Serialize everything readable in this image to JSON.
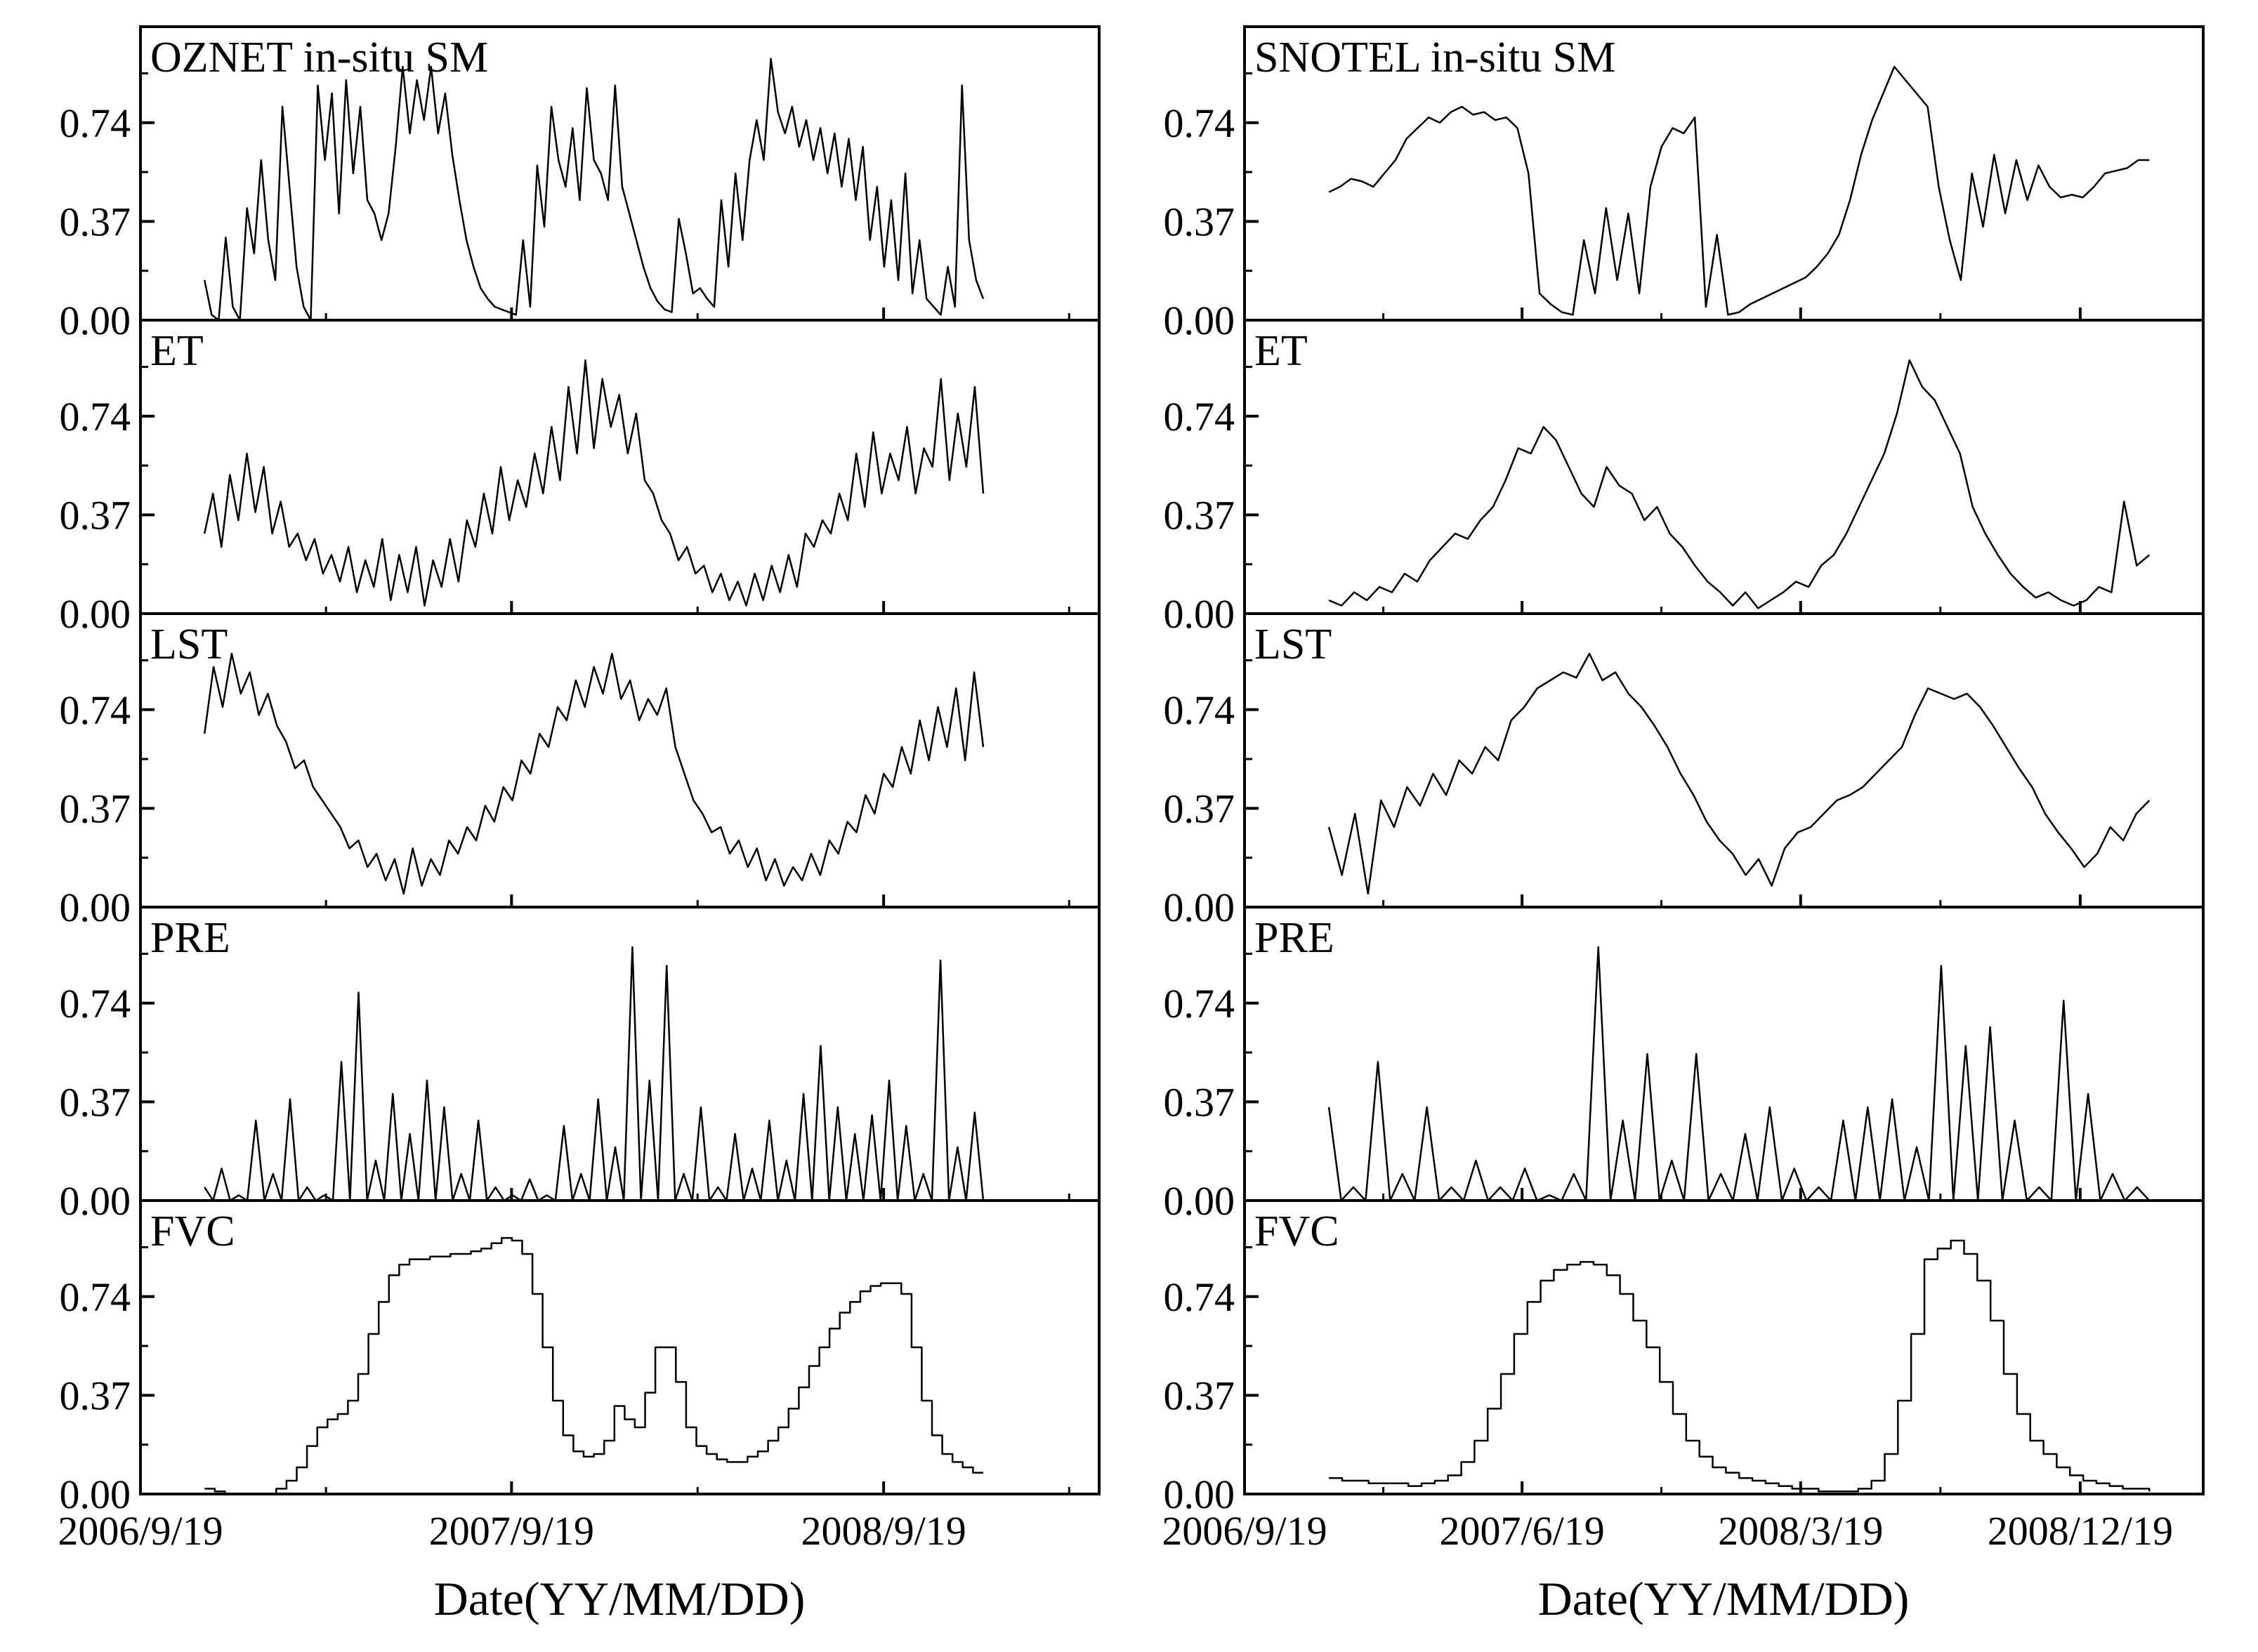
{
  "figure": {
    "x_axis_title": "Date(YY/MM/DD)",
    "y_tick_labels": [
      "0.00",
      "0.37",
      "0.74"
    ]
  },
  "chart_data": [
    {
      "type": "line",
      "column": "left",
      "x_axis_title": "Date(YY/MM/DD)",
      "x_tick_labels": [
        "2006/9/19",
        "2007/9/19",
        "2008/9/19"
      ],
      "x_tick_dates": [
        "2006-09-19",
        "2007-09-19",
        "2008-09-19"
      ],
      "x_range": [
        "2006-09-19",
        "2009-04-19"
      ],
      "ylim": [
        0,
        1.1
      ],
      "y_ticks": [
        0.0,
        0.37,
        0.74
      ],
      "panels": [
        {
          "title": "OZNET in-situ SM",
          "step": false,
          "x_start": "2006-11-21",
          "x_end": "2008-12-26",
          "values": [
            0.15,
            0.02,
            0.0,
            0.31,
            0.05,
            0.0,
            0.42,
            0.25,
            0.6,
            0.3,
            0.15,
            0.8,
            0.5,
            0.2,
            0.05,
            0.0,
            0.88,
            0.6,
            0.85,
            0.4,
            0.9,
            0.55,
            0.8,
            0.45,
            0.4,
            0.3,
            0.4,
            0.65,
            0.95,
            0.7,
            0.9,
            0.75,
            0.95,
            0.7,
            0.85,
            0.62,
            0.45,
            0.3,
            0.2,
            0.12,
            0.08,
            0.05,
            0.04,
            0.03,
            0.02,
            0.3,
            0.05,
            0.58,
            0.35,
            0.8,
            0.6,
            0.5,
            0.72,
            0.45,
            0.87,
            0.6,
            0.55,
            0.45,
            0.88,
            0.5,
            0.4,
            0.3,
            0.2,
            0.12,
            0.07,
            0.04,
            0.03,
            0.38,
            0.25,
            0.1,
            0.12,
            0.08,
            0.05,
            0.45,
            0.2,
            0.55,
            0.3,
            0.6,
            0.75,
            0.6,
            0.98,
            0.78,
            0.7,
            0.8,
            0.65,
            0.75,
            0.6,
            0.72,
            0.55,
            0.7,
            0.5,
            0.68,
            0.45,
            0.65,
            0.3,
            0.5,
            0.2,
            0.45,
            0.15,
            0.55,
            0.1,
            0.3,
            0.08,
            0.05,
            0.02,
            0.2,
            0.05,
            0.88,
            0.3,
            0.15,
            0.08
          ]
        },
        {
          "title": "ET",
          "step": false,
          "x_start": "2006-11-21",
          "x_end": "2008-12-26",
          "values": [
            0.3,
            0.45,
            0.25,
            0.52,
            0.35,
            0.6,
            0.38,
            0.55,
            0.3,
            0.42,
            0.25,
            0.3,
            0.2,
            0.28,
            0.15,
            0.22,
            0.12,
            0.25,
            0.08,
            0.2,
            0.1,
            0.28,
            0.05,
            0.22,
            0.08,
            0.25,
            0.03,
            0.2,
            0.1,
            0.28,
            0.12,
            0.35,
            0.25,
            0.45,
            0.3,
            0.55,
            0.35,
            0.5,
            0.4,
            0.6,
            0.45,
            0.7,
            0.5,
            0.85,
            0.6,
            0.95,
            0.62,
            0.88,
            0.7,
            0.82,
            0.6,
            0.75,
            0.5,
            0.45,
            0.35,
            0.3,
            0.2,
            0.25,
            0.15,
            0.18,
            0.08,
            0.15,
            0.05,
            0.12,
            0.03,
            0.15,
            0.05,
            0.18,
            0.08,
            0.22,
            0.1,
            0.3,
            0.25,
            0.35,
            0.3,
            0.45,
            0.35,
            0.6,
            0.4,
            0.68,
            0.45,
            0.6,
            0.5,
            0.7,
            0.45,
            0.62,
            0.55,
            0.88,
            0.5,
            0.75,
            0.55,
            0.85,
            0.45
          ]
        },
        {
          "title": "LST",
          "step": false,
          "x_start": "2006-11-21",
          "x_end": "2008-12-26",
          "values": [
            0.65,
            0.9,
            0.75,
            0.95,
            0.8,
            0.88,
            0.72,
            0.8,
            0.68,
            0.62,
            0.52,
            0.55,
            0.45,
            0.4,
            0.35,
            0.3,
            0.22,
            0.25,
            0.15,
            0.2,
            0.1,
            0.18,
            0.05,
            0.22,
            0.08,
            0.18,
            0.12,
            0.25,
            0.2,
            0.3,
            0.25,
            0.38,
            0.32,
            0.45,
            0.4,
            0.55,
            0.5,
            0.65,
            0.6,
            0.75,
            0.7,
            0.85,
            0.75,
            0.9,
            0.8,
            0.95,
            0.78,
            0.85,
            0.7,
            0.78,
            0.72,
            0.82,
            0.6,
            0.5,
            0.4,
            0.35,
            0.28,
            0.3,
            0.2,
            0.25,
            0.15,
            0.22,
            0.1,
            0.18,
            0.08,
            0.15,
            0.1,
            0.2,
            0.12,
            0.25,
            0.2,
            0.32,
            0.28,
            0.42,
            0.35,
            0.5,
            0.45,
            0.6,
            0.5,
            0.7,
            0.55,
            0.75,
            0.6,
            0.82,
            0.55,
            0.88,
            0.6
          ]
        },
        {
          "title": "PRE",
          "step": false,
          "x_start": "2006-11-21",
          "x_end": "2008-12-26",
          "values": [
            0.05,
            0.0,
            0.12,
            0.0,
            0.02,
            0.0,
            0.3,
            0.0,
            0.1,
            0.0,
            0.38,
            0.0,
            0.05,
            0.0,
            0.02,
            0.0,
            0.52,
            0.0,
            0.78,
            0.0,
            0.15,
            0.0,
            0.4,
            0.0,
            0.25,
            0.0,
            0.45,
            0.0,
            0.35,
            0.0,
            0.1,
            0.0,
            0.3,
            0.0,
            0.05,
            0.0,
            0.02,
            0.0,
            0.08,
            0.0,
            0.02,
            0.0,
            0.28,
            0.0,
            0.1,
            0.0,
            0.38,
            0.0,
            0.2,
            0.0,
            0.95,
            0.0,
            0.45,
            0.0,
            0.88,
            0.0,
            0.1,
            0.0,
            0.35,
            0.0,
            0.05,
            0.0,
            0.25,
            0.0,
            0.12,
            0.0,
            0.3,
            0.0,
            0.15,
            0.0,
            0.4,
            0.0,
            0.58,
            0.0,
            0.35,
            0.0,
            0.25,
            0.0,
            0.32,
            0.0,
            0.45,
            0.0,
            0.28,
            0.0,
            0.1,
            0.0,
            0.9,
            0.0,
            0.2,
            0.0,
            0.33,
            0.0
          ]
        },
        {
          "title": "FVC",
          "step": true,
          "x_start": "2006-11-21",
          "x_end": "2008-12-26",
          "values": [
            0.02,
            0.01,
            0.0,
            0.0,
            0.0,
            0.0,
            0.0,
            0.02,
            0.05,
            0.1,
            0.18,
            0.25,
            0.28,
            0.3,
            0.35,
            0.45,
            0.6,
            0.72,
            0.82,
            0.86,
            0.88,
            0.88,
            0.89,
            0.89,
            0.9,
            0.9,
            0.91,
            0.92,
            0.94,
            0.96,
            0.95,
            0.9,
            0.75,
            0.55,
            0.35,
            0.22,
            0.16,
            0.14,
            0.15,
            0.2,
            0.33,
            0.28,
            0.25,
            0.38,
            0.55,
            0.55,
            0.42,
            0.25,
            0.18,
            0.15,
            0.13,
            0.12,
            0.12,
            0.14,
            0.16,
            0.2,
            0.25,
            0.32,
            0.4,
            0.48,
            0.55,
            0.62,
            0.68,
            0.72,
            0.76,
            0.78,
            0.79,
            0.79,
            0.75,
            0.55,
            0.35,
            0.22,
            0.15,
            0.12,
            0.1,
            0.08,
            0.08
          ]
        }
      ]
    },
    {
      "type": "line",
      "column": "right",
      "x_axis_title": "Date(YY/MM/DD)",
      "x_tick_labels": [
        "2006/9/19",
        "2007/6/19",
        "2008/3/19",
        "2008/12/19"
      ],
      "x_tick_dates": [
        "2006-09-19",
        "2007-06-19",
        "2008-03-19",
        "2008-12-19"
      ],
      "x_range": [
        "2006-09-19",
        "2009-04-19"
      ],
      "ylim": [
        0,
        1.1
      ],
      "y_ticks": [
        0.0,
        0.37,
        0.74
      ],
      "panels": [
        {
          "title": "SNOTEL in-situ SM",
          "step": false,
          "x_start": "2006-12-11",
          "x_end": "2009-02-25",
          "values": [
            0.48,
            0.5,
            0.53,
            0.52,
            0.5,
            0.55,
            0.6,
            0.68,
            0.72,
            0.76,
            0.74,
            0.78,
            0.8,
            0.77,
            0.78,
            0.75,
            0.76,
            0.72,
            0.55,
            0.1,
            0.06,
            0.03,
            0.02,
            0.3,
            0.1,
            0.42,
            0.15,
            0.4,
            0.1,
            0.5,
            0.65,
            0.72,
            0.7,
            0.76,
            0.05,
            0.32,
            0.02,
            0.03,
            0.06,
            0.08,
            0.1,
            0.12,
            0.14,
            0.16,
            0.2,
            0.25,
            0.32,
            0.45,
            0.62,
            0.75,
            0.85,
            0.95,
            0.9,
            0.85,
            0.8,
            0.5,
            0.3,
            0.15,
            0.55,
            0.35,
            0.62,
            0.4,
            0.6,
            0.45,
            0.58,
            0.5,
            0.46,
            0.47,
            0.46,
            0.5,
            0.55,
            0.56,
            0.57,
            0.6,
            0.6
          ]
        },
        {
          "title": "ET",
          "step": false,
          "x_start": "2006-12-11",
          "x_end": "2009-02-25",
          "values": [
            0.05,
            0.03,
            0.08,
            0.05,
            0.1,
            0.08,
            0.15,
            0.12,
            0.2,
            0.25,
            0.3,
            0.28,
            0.35,
            0.4,
            0.5,
            0.62,
            0.6,
            0.7,
            0.65,
            0.55,
            0.45,
            0.4,
            0.55,
            0.48,
            0.45,
            0.35,
            0.4,
            0.3,
            0.25,
            0.18,
            0.12,
            0.08,
            0.03,
            0.08,
            0.02,
            0.05,
            0.08,
            0.12,
            0.1,
            0.18,
            0.22,
            0.3,
            0.4,
            0.5,
            0.6,
            0.75,
            0.95,
            0.85,
            0.8,
            0.7,
            0.6,
            0.4,
            0.3,
            0.22,
            0.15,
            0.1,
            0.06,
            0.08,
            0.05,
            0.03,
            0.05,
            0.1,
            0.08,
            0.42,
            0.18,
            0.22
          ]
        },
        {
          "title": "LST",
          "step": false,
          "x_start": "2006-12-11",
          "x_end": "2009-02-25",
          "values": [
            0.3,
            0.12,
            0.35,
            0.05,
            0.4,
            0.3,
            0.45,
            0.38,
            0.5,
            0.42,
            0.55,
            0.5,
            0.6,
            0.55,
            0.7,
            0.75,
            0.82,
            0.85,
            0.88,
            0.86,
            0.95,
            0.85,
            0.88,
            0.8,
            0.75,
            0.68,
            0.6,
            0.5,
            0.42,
            0.32,
            0.25,
            0.2,
            0.12,
            0.18,
            0.08,
            0.22,
            0.28,
            0.3,
            0.35,
            0.4,
            0.42,
            0.45,
            0.5,
            0.55,
            0.6,
            0.72,
            0.82,
            0.8,
            0.78,
            0.8,
            0.75,
            0.68,
            0.6,
            0.52,
            0.45,
            0.35,
            0.28,
            0.22,
            0.15,
            0.2,
            0.3,
            0.25,
            0.35,
            0.4
          ]
        },
        {
          "title": "PRE",
          "step": false,
          "x_start": "2006-12-11",
          "x_end": "2009-02-25",
          "values": [
            0.35,
            0.0,
            0.05,
            0.0,
            0.52,
            0.0,
            0.1,
            0.0,
            0.35,
            0.0,
            0.05,
            0.0,
            0.15,
            0.0,
            0.05,
            0.0,
            0.12,
            0.0,
            0.02,
            0.0,
            0.1,
            0.0,
            0.95,
            0.0,
            0.3,
            0.0,
            0.55,
            0.0,
            0.15,
            0.0,
            0.55,
            0.0,
            0.1,
            0.0,
            0.25,
            0.0,
            0.35,
            0.0,
            0.12,
            0.0,
            0.05,
            0.0,
            0.3,
            0.0,
            0.35,
            0.0,
            0.38,
            0.0,
            0.2,
            0.0,
            0.88,
            0.0,
            0.58,
            0.0,
            0.65,
            0.0,
            0.3,
            0.0,
            0.05,
            0.0,
            0.75,
            0.0,
            0.4,
            0.0,
            0.1,
            0.0,
            0.05,
            0.0
          ]
        },
        {
          "title": "FVC",
          "step": true,
          "x_start": "2006-12-11",
          "x_end": "2009-02-25",
          "values": [
            0.06,
            0.05,
            0.05,
            0.04,
            0.04,
            0.04,
            0.03,
            0.04,
            0.05,
            0.07,
            0.12,
            0.2,
            0.32,
            0.45,
            0.6,
            0.72,
            0.8,
            0.84,
            0.86,
            0.87,
            0.86,
            0.82,
            0.75,
            0.65,
            0.55,
            0.42,
            0.3,
            0.2,
            0.14,
            0.1,
            0.08,
            0.06,
            0.05,
            0.04,
            0.03,
            0.02,
            0.02,
            0.01,
            0.01,
            0.01,
            0.02,
            0.05,
            0.15,
            0.35,
            0.6,
            0.88,
            0.92,
            0.95,
            0.9,
            0.8,
            0.65,
            0.45,
            0.3,
            0.2,
            0.15,
            0.1,
            0.07,
            0.05,
            0.04,
            0.03,
            0.02,
            0.02,
            0.01
          ]
        }
      ]
    }
  ]
}
